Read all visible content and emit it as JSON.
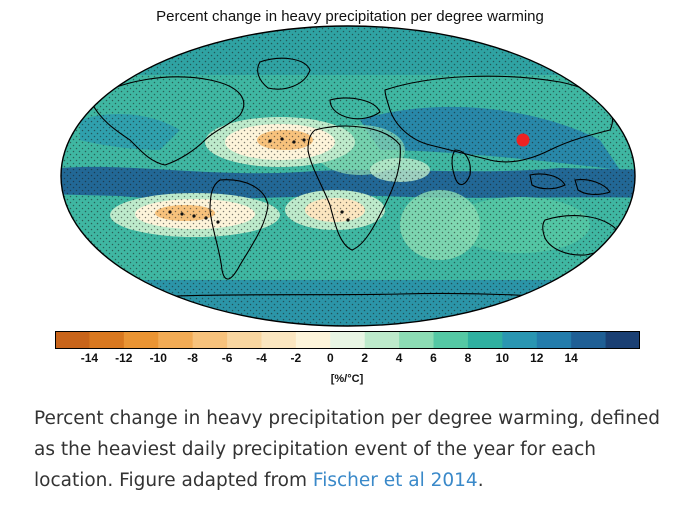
{
  "figure": {
    "title": "Percent change in heavy precipitation per degree warming"
  },
  "map": {
    "projection": "robinson",
    "contour_color": "#000000",
    "stipple_color": "#222222",
    "highlight_marker_color": "#ee2222"
  },
  "colorbar": {
    "unit_label": "[%/°C]",
    "ticks": [
      "-14",
      "-12",
      "-10",
      "-8",
      "-6",
      "-4",
      "-2",
      "0",
      "2",
      "4",
      "6",
      "8",
      "10",
      "12",
      "14"
    ],
    "colors": [
      "#c8641a",
      "#d9781f",
      "#ea9433",
      "#f2ab55",
      "#f7c27c",
      "#f9d6a0",
      "#fbe6c0",
      "#fdf4da",
      "#e8f5e4",
      "#bdeacb",
      "#8cdcb4",
      "#55c8a4",
      "#2fb0a0",
      "#2a96b2",
      "#237cab",
      "#1f5f95",
      "#1a3f73"
    ]
  },
  "caption": {
    "text": "Percent change in heavy precipitation per degree warming, defined as the heaviest daily precipitation event of the year for each location. Figure adapted from",
    "link_text": "Fischer et al 2014",
    "link_color": "#3a89c9",
    "end_punct": "."
  }
}
